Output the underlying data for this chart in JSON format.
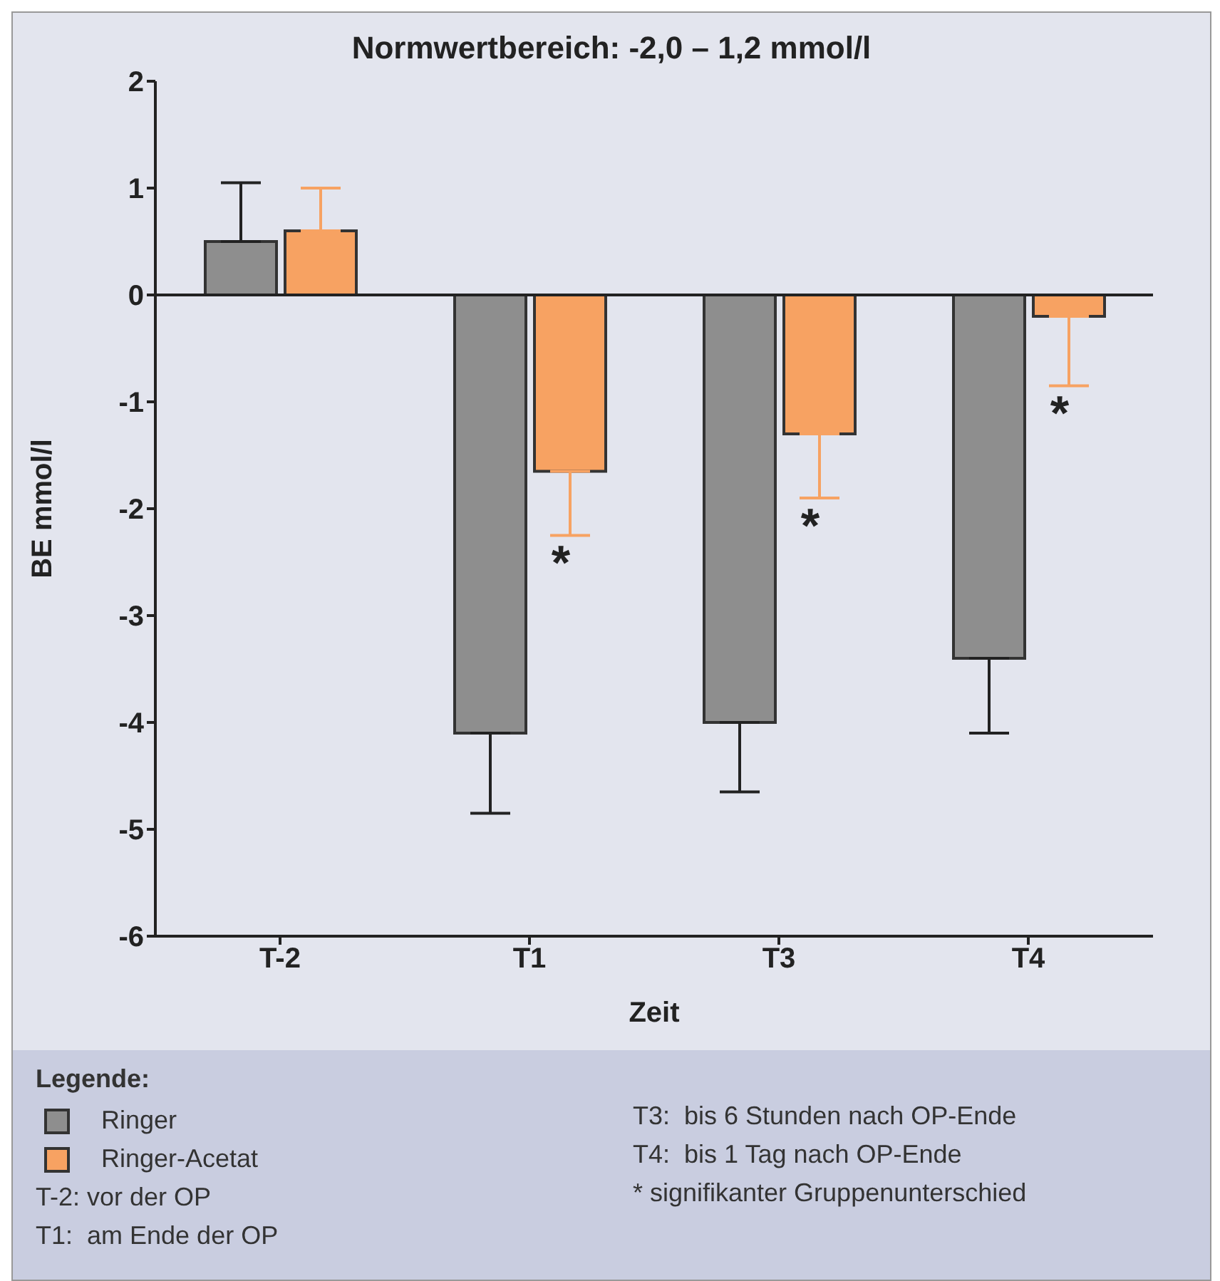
{
  "chart_data": {
    "type": "bar",
    "title": "Normwertbereich: -2,0 – 1,2 mmol/l",
    "xlabel": "Zeit",
    "ylabel": "BE mmol/l",
    "legend_title": "Legende:",
    "categories": [
      "T-2",
      "T1",
      "T3",
      "T4"
    ],
    "series": [
      {
        "name": "Ringer",
        "color": "#8e8e8e",
        "values": [
          0.5,
          -4.1,
          -4.0,
          -3.4
        ],
        "errors": [
          [
            0.5,
            1.05
          ],
          [
            -4.85,
            -4.1
          ],
          [
            -4.65,
            -4.0
          ],
          [
            -4.1,
            -3.4
          ]
        ]
      },
      {
        "name": "Ringer-Acetat",
        "color": "#f7a262",
        "values": [
          0.6,
          -1.65,
          -1.3,
          -0.2
        ],
        "errors": [
          [
            0.6,
            1.0
          ],
          [
            -2.25,
            -1.65
          ],
          [
            -1.9,
            -1.3
          ],
          [
            -0.85,
            -0.2
          ]
        ]
      }
    ],
    "ref_lines": [
      {
        "axis": "y",
        "value": 0,
        "color": "#222222"
      }
    ],
    "ylim": [
      -6,
      2
    ],
    "yticks": [
      -6,
      -5,
      -4,
      -3,
      -2,
      -1,
      0,
      1,
      2
    ],
    "grid": false,
    "legend": "bottom",
    "annotations": [
      {
        "text": "*",
        "x": "T1",
        "y": -2.5
      },
      {
        "text": "*",
        "x": "T3",
        "y": -2.15
      },
      {
        "text": "*",
        "x": "T4",
        "y": -1.1
      },
      "T-2: vor der OP",
      "T1:  am Ende der OP",
      "T3:  bis 6 Stunden nach OP-Ende",
      "T4:  bis 1 Tag nach OP-Ende",
      "* signifikanter Gruppenunterschied"
    ]
  }
}
